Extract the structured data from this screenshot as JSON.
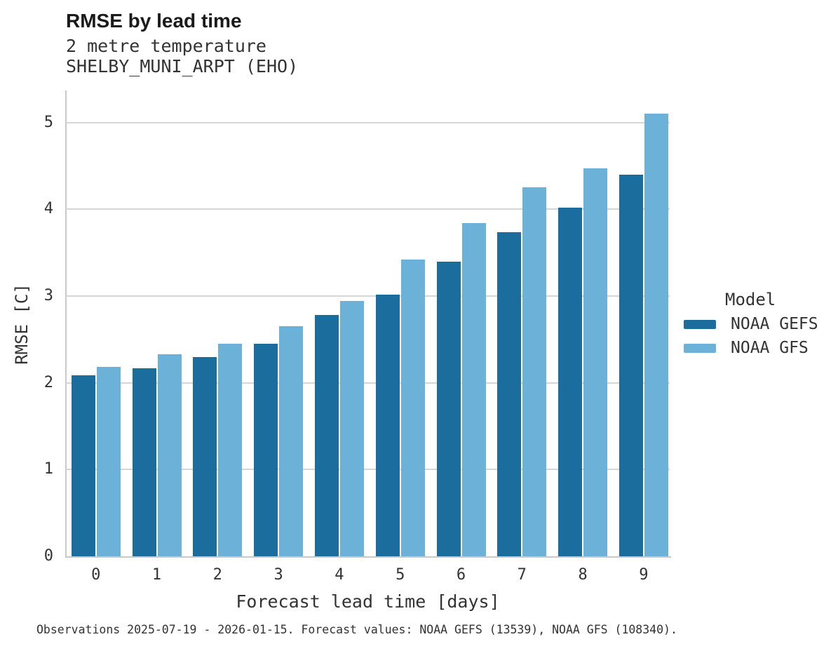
{
  "header": {
    "title": "RMSE by lead time",
    "subtitle": "2 metre temperature",
    "station": "SHELBY_MUNI_ARPT (EHO)"
  },
  "legend": {
    "title": "Model",
    "items": [
      {
        "label": "NOAA GEFS",
        "color": "#1A6D9C"
      },
      {
        "label": "NOAA GFS",
        "color": "#6CB1D8"
      }
    ]
  },
  "footer": {
    "note": "Observations 2025-07-19 - 2026-01-15. Forecast values: NOAA GEFS (13539), NOAA GFS (108340)."
  },
  "colors": {
    "gefs": "#1A6D9C",
    "gfs": "#6CB1D8",
    "grid": "#d6d6d6",
    "spine": "#c9c9c9",
    "text": "#333333",
    "title": "#1a1a1a"
  },
  "chart_data": {
    "type": "bar",
    "title": "RMSE by lead time",
    "subtitle": [
      "2 metre temperature",
      "SHELBY_MUNI_ARPT (EHO)"
    ],
    "categories": [
      "0",
      "1",
      "2",
      "3",
      "4",
      "5",
      "6",
      "7",
      "8",
      "9"
    ],
    "series": [
      {
        "name": "NOAA GEFS",
        "color": "#1A6D9C",
        "values": [
          2.09,
          2.17,
          2.3,
          2.45,
          2.78,
          3.02,
          3.4,
          3.74,
          4.02,
          4.4
        ]
      },
      {
        "name": "NOAA GFS",
        "color": "#6CB1D8",
        "values": [
          2.18,
          2.33,
          2.45,
          2.65,
          2.94,
          3.42,
          3.84,
          4.25,
          4.47,
          5.1
        ]
      }
    ],
    "xlabel": "Forecast lead time [days]",
    "ylabel": "RMSE [C]",
    "ylim": [
      0,
      5.37
    ],
    "yticks": [
      0,
      1,
      2,
      3,
      4,
      5
    ],
    "grid": true,
    "legend_position": "right",
    "legend_title": "Model"
  }
}
